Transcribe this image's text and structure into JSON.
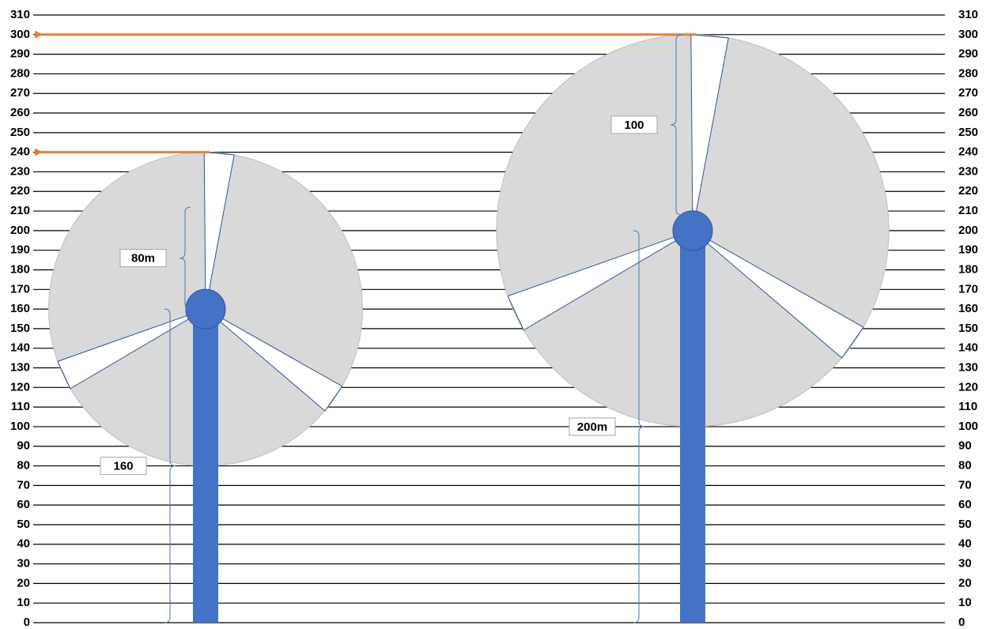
{
  "scale": {
    "ticks": [
      0,
      10,
      20,
      30,
      40,
      50,
      60,
      70,
      80,
      90,
      100,
      110,
      120,
      130,
      140,
      150,
      160,
      170,
      180,
      190,
      200,
      210,
      220,
      230,
      240,
      250,
      260,
      270,
      280,
      290,
      300,
      310
    ]
  },
  "turbines": [
    {
      "hub_height": 160,
      "rotor_radius": 80,
      "rotor_radius_label": "80m"
    },
    {
      "hub_height": 200,
      "hub_height_label": "200m",
      "rotor_radius": 100
    }
  ]
}
